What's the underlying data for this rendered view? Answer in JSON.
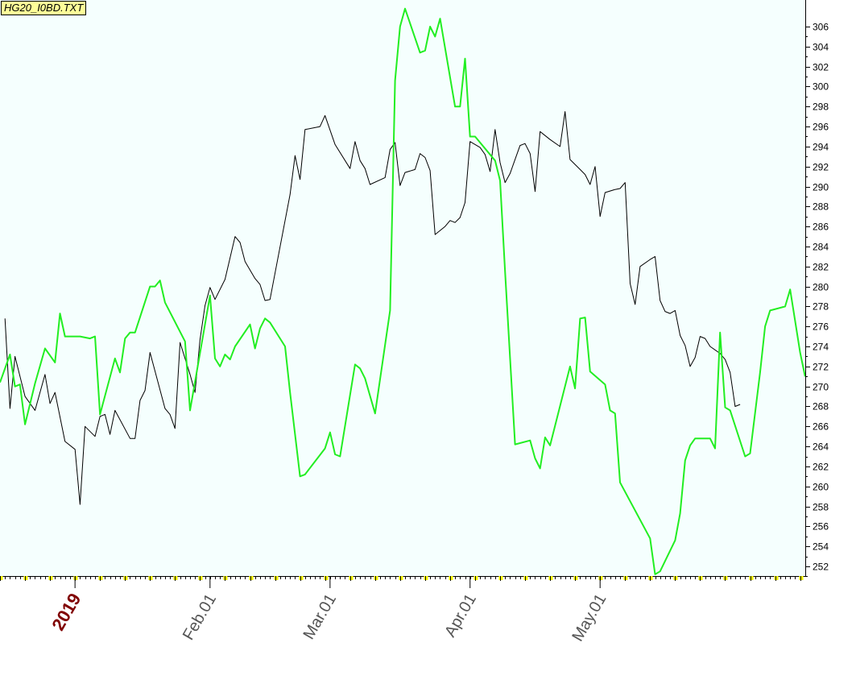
{
  "file_label": "HG20_I0BD.TXT",
  "colors": {
    "plot_background": "#f5fffe",
    "series_black": "#000000",
    "series_green": "#22ee22",
    "axis": "#000000",
    "tick_marker": "#ffff00",
    "year_label": "#800000",
    "month_label": "#555555",
    "file_label_bg": "#ffff99"
  },
  "chart_data": {
    "type": "line",
    "title": "",
    "xlabel": "",
    "ylabel": "",
    "ylim": [
      251.2,
      307.8
    ],
    "y_ticks": [
      252,
      254,
      256,
      258,
      260,
      262,
      264,
      266,
      268,
      270,
      272,
      274,
      276,
      278,
      280,
      282,
      284,
      286,
      288,
      290,
      292,
      294,
      296,
      298,
      300,
      302,
      304,
      306
    ],
    "x_labels": [
      {
        "text": "2019",
        "index": 15,
        "kind": "year"
      },
      {
        "text": "Feb.01",
        "index": 42,
        "kind": "month"
      },
      {
        "text": "Mar.01",
        "index": 66,
        "kind": "month"
      },
      {
        "text": "Apr.01",
        "index": 94,
        "kind": "month"
      },
      {
        "text": "May.01",
        "index": 120,
        "kind": "month"
      }
    ],
    "n_points": 140,
    "grid": false,
    "series": [
      {
        "color": "#000000",
        "points": [
          [
            1,
            276.8
          ],
          [
            2,
            267.8
          ],
          [
            3,
            273.0
          ],
          [
            5,
            269.0
          ],
          [
            7,
            267.6
          ],
          [
            9,
            271.2
          ],
          [
            10,
            268.3
          ],
          [
            11,
            269.4
          ],
          [
            13,
            264.5
          ],
          [
            15,
            263.7
          ],
          [
            16,
            258.2
          ],
          [
            17,
            266.0
          ],
          [
            19,
            265.0
          ],
          [
            20,
            267.0
          ],
          [
            21,
            267.2
          ],
          [
            22,
            265.2
          ],
          [
            23,
            267.6
          ],
          [
            26,
            264.8
          ],
          [
            27,
            264.8
          ],
          [
            28,
            268.6
          ],
          [
            29,
            269.6
          ],
          [
            30,
            273.4
          ],
          [
            33,
            267.8
          ],
          [
            34,
            267.2
          ],
          [
            35,
            265.8
          ],
          [
            36,
            274.4
          ],
          [
            38,
            271.2
          ],
          [
            39,
            269.4
          ],
          [
            40,
            274.7
          ],
          [
            41,
            278.1
          ],
          [
            42,
            279.9
          ],
          [
            43,
            278.7
          ],
          [
            45,
            280.7
          ],
          [
            47,
            285.0
          ],
          [
            48,
            284.4
          ],
          [
            49,
            282.5
          ],
          [
            51,
            280.8
          ],
          [
            52,
            280.2
          ],
          [
            53,
            278.6
          ],
          [
            54,
            278.7
          ],
          [
            58,
            289.2
          ],
          [
            59,
            293.1
          ],
          [
            60,
            290.7
          ],
          [
            61,
            295.7
          ],
          [
            64,
            296.0
          ],
          [
            65,
            297.1
          ],
          [
            67,
            294.2
          ],
          [
            70,
            291.8
          ],
          [
            71,
            294.5
          ],
          [
            72,
            292.6
          ],
          [
            73,
            291.8
          ],
          [
            74,
            290.2
          ],
          [
            77,
            290.9
          ],
          [
            78,
            293.7
          ],
          [
            79,
            294.4
          ],
          [
            80,
            290.1
          ],
          [
            81,
            291.4
          ],
          [
            83,
            291.7
          ],
          [
            84,
            293.3
          ],
          [
            85,
            292.9
          ],
          [
            86,
            291.6
          ],
          [
            87,
            285.2
          ],
          [
            88,
            285.6
          ],
          [
            89,
            286.0
          ],
          [
            90,
            286.6
          ],
          [
            91,
            286.4
          ],
          [
            92,
            286.9
          ],
          [
            93,
            288.4
          ],
          [
            94,
            294.5
          ],
          [
            96,
            293.9
          ],
          [
            97,
            293.2
          ],
          [
            98,
            291.5
          ],
          [
            99,
            295.7
          ],
          [
            100,
            292.4
          ],
          [
            101,
            290.4
          ],
          [
            102,
            291.3
          ],
          [
            104,
            294.1
          ],
          [
            105,
            294.3
          ],
          [
            106,
            293.3
          ],
          [
            107,
            289.5
          ],
          [
            108,
            295.5
          ],
          [
            110,
            294.7
          ],
          [
            112,
            294.0
          ],
          [
            113,
            297.5
          ],
          [
            114,
            292.7
          ],
          [
            116,
            291.7
          ],
          [
            117,
            291.2
          ],
          [
            118,
            290.2
          ],
          [
            119,
            292.0
          ],
          [
            120,
            287.0
          ],
          [
            121,
            289.4
          ],
          [
            123,
            289.7
          ],
          [
            124,
            289.8
          ],
          [
            125,
            290.4
          ],
          [
            126,
            280.3
          ],
          [
            127,
            278.2
          ],
          [
            128,
            282.0
          ],
          [
            130,
            282.7
          ],
          [
            131,
            283.0
          ],
          [
            132,
            278.6
          ],
          [
            133,
            277.5
          ],
          [
            134,
            277.3
          ],
          [
            135,
            277.6
          ],
          [
            136,
            275.1
          ],
          [
            137,
            274.1
          ],
          [
            138,
            272.0
          ],
          [
            139,
            272.9
          ],
          [
            140,
            275.0
          ],
          [
            141,
            274.8
          ],
          [
            142,
            274.0
          ],
          [
            144,
            273.3
          ],
          [
            145,
            272.7
          ],
          [
            146,
            271.4
          ],
          [
            147,
            268.0
          ],
          [
            148,
            268.2
          ]
        ]
      },
      {
        "color": "#22ee22",
        "points": [
          [
            0,
            270.4
          ],
          [
            2,
            273.2
          ],
          [
            3,
            270.0
          ],
          [
            4,
            270.2
          ],
          [
            5,
            266.2
          ],
          [
            7,
            270.3
          ],
          [
            9,
            273.8
          ],
          [
            11,
            272.4
          ],
          [
            12,
            277.3
          ],
          [
            13,
            275.0
          ],
          [
            16,
            275.0
          ],
          [
            18,
            274.8
          ],
          [
            19,
            275.0
          ],
          [
            20,
            267.2
          ],
          [
            23,
            272.8
          ],
          [
            24,
            271.4
          ],
          [
            25,
            274.8
          ],
          [
            26,
            275.4
          ],
          [
            27,
            275.4
          ],
          [
            30,
            280.0
          ],
          [
            31,
            280.0
          ],
          [
            32,
            280.6
          ],
          [
            33,
            278.4
          ],
          [
            37,
            274.5
          ],
          [
            38,
            267.6
          ],
          [
            42,
            279.1
          ],
          [
            43,
            272.8
          ],
          [
            44,
            272.0
          ],
          [
            45,
            273.2
          ],
          [
            46,
            272.7
          ],
          [
            47,
            274.0
          ],
          [
            50,
            276.2
          ],
          [
            51,
            273.8
          ],
          [
            52,
            275.8
          ],
          [
            53,
            276.8
          ],
          [
            54,
            276.4
          ],
          [
            57,
            274.0
          ],
          [
            58,
            269.4
          ],
          [
            60,
            261.0
          ],
          [
            61,
            261.2
          ],
          [
            65,
            263.8
          ],
          [
            66,
            265.4
          ],
          [
            67,
            263.2
          ],
          [
            68,
            263.0
          ],
          [
            71,
            272.2
          ],
          [
            72,
            271.8
          ],
          [
            73,
            270.8
          ],
          [
            75,
            267.3
          ],
          [
            78,
            277.6
          ],
          [
            79,
            300.6
          ],
          [
            80,
            306.0
          ],
          [
            81,
            307.8
          ],
          [
            84,
            303.4
          ],
          [
            85,
            303.6
          ],
          [
            86,
            306.0
          ],
          [
            87,
            305.0
          ],
          [
            88,
            306.8
          ],
          [
            91,
            298.0
          ],
          [
            92,
            298.0
          ],
          [
            93,
            302.8
          ],
          [
            94,
            295.0
          ],
          [
            95,
            295.0
          ],
          [
            99,
            292.6
          ],
          [
            100,
            290.6
          ],
          [
            101,
            281.5
          ],
          [
            103,
            264.2
          ],
          [
            106,
            264.6
          ],
          [
            107,
            262.8
          ],
          [
            108,
            261.8
          ],
          [
            109,
            264.9
          ],
          [
            110,
            264.1
          ],
          [
            114,
            272.0
          ],
          [
            115,
            269.8
          ],
          [
            116,
            276.8
          ],
          [
            117,
            276.9
          ],
          [
            118,
            271.5
          ],
          [
            121,
            270.2
          ],
          [
            122,
            267.6
          ],
          [
            123,
            267.3
          ],
          [
            124,
            260.4
          ],
          [
            130,
            254.8
          ],
          [
            131,
            251.2
          ],
          [
            132,
            251.5
          ],
          [
            135,
            254.6
          ],
          [
            136,
            257.3
          ],
          [
            137,
            262.6
          ],
          [
            138,
            264.1
          ],
          [
            139,
            264.8
          ],
          [
            142,
            264.8
          ],
          [
            143,
            263.8
          ],
          [
            144,
            275.4
          ],
          [
            145,
            267.9
          ],
          [
            146,
            267.6
          ],
          [
            149,
            263.0
          ],
          [
            150,
            263.3
          ],
          [
            152,
            271.4
          ],
          [
            153,
            276.0
          ],
          [
            154,
            277.6
          ],
          [
            157,
            278.0
          ],
          [
            158,
            279.7
          ],
          [
            160,
            273.4
          ],
          [
            161,
            271.0
          ]
        ]
      }
    ]
  }
}
